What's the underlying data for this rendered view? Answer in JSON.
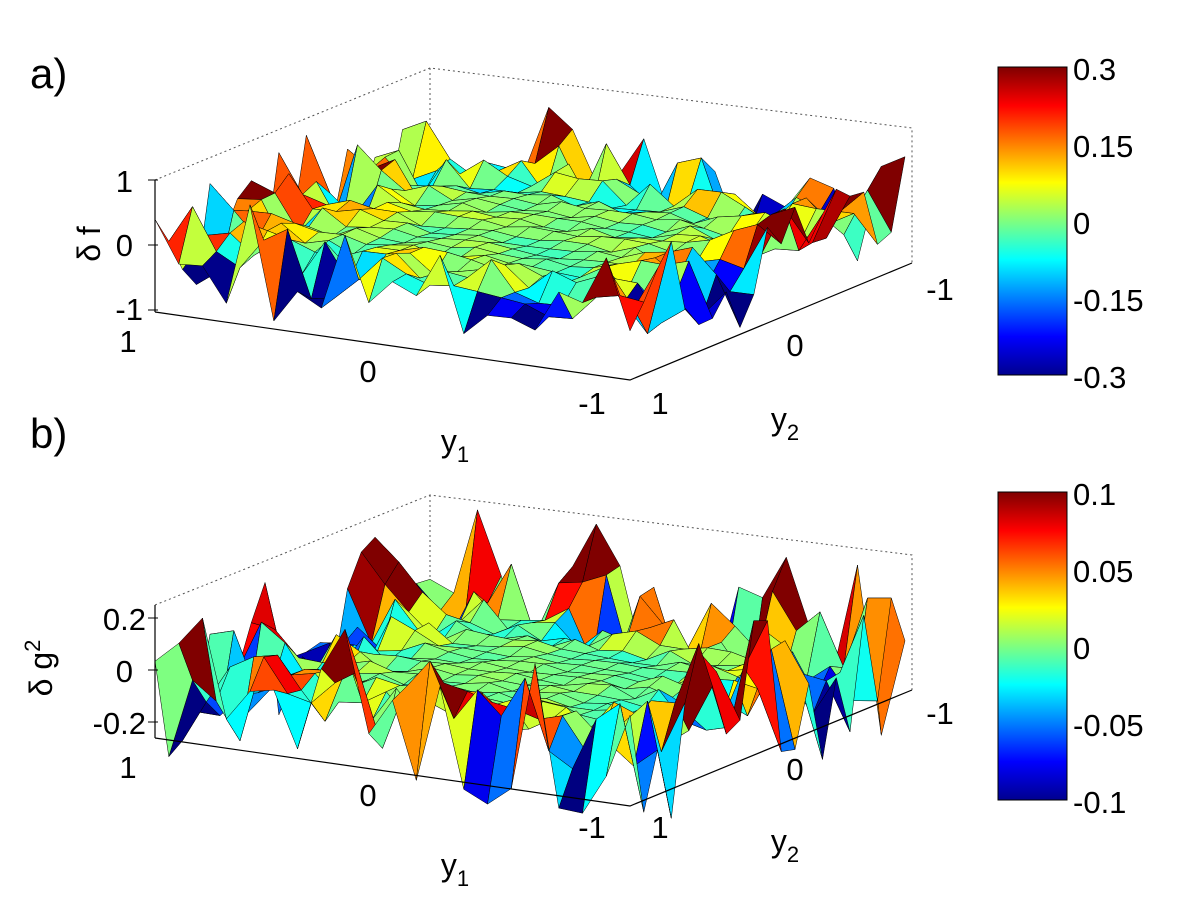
{
  "panels": [
    {
      "panel_label": "a)",
      "zlabel": "δ f",
      "colorbar": {
        "ticks": [
          "0.3",
          "0.15",
          "0",
          "-0.15",
          "-0.3"
        ],
        "cmin": -0.3,
        "cmax": 0.3
      }
    },
    {
      "panel_label": "b)",
      "zlabel": "δ g",
      "zlabel_sup": "2",
      "colorbar": {
        "ticks": [
          "0.1",
          "0.05",
          "0",
          "-0.05",
          "-0.1"
        ],
        "cmin": -0.1,
        "cmax": 0.1
      }
    }
  ],
  "axes": {
    "xlabel": "y",
    "xlabel_sub": "1",
    "ylabel": "y",
    "ylabel_sub": "2",
    "x_ticks": [
      "1",
      "0",
      "-1"
    ],
    "y_ticks": [
      "1",
      "0",
      "-1"
    ]
  },
  "chart_data": [
    {
      "type": "surface",
      "panel": "a)",
      "x": {
        "range": [
          -1,
          1
        ],
        "ticks": [
          1,
          0,
          -1
        ]
      },
      "y": {
        "range": [
          -1,
          1
        ],
        "ticks": [
          1,
          0,
          -1
        ]
      },
      "z": {
        "range": [
          -1,
          1
        ],
        "ticks": [
          -1,
          0,
          1
        ]
      },
      "colormap": "jet",
      "color_range": [
        -0.3,
        0.3
      ],
      "grid_size": 20,
      "description_of_values": "deviation is small near the centre and large with sharp spikes near the boundary of [-1,1]x[-1,1]",
      "center_amplitude": 0.05,
      "edge_amplitude": 0.9
    },
    {
      "type": "surface",
      "panel": "b)",
      "x": {
        "range": [
          -1,
          1
        ],
        "ticks": [
          1,
          0,
          -1
        ]
      },
      "y": {
        "range": [
          -1,
          1
        ],
        "ticks": [
          1,
          0,
          -1
        ]
      },
      "z": {
        "range": [
          -0.25,
          0.25
        ],
        "ticks": [
          -0.2,
          0,
          0.2
        ]
      },
      "colormap": "jet",
      "color_range": [
        -0.1,
        0.1
      ],
      "grid_size": 20,
      "description_of_values": "deviation is small near the centre and large with sharp spikes near the boundary of [-1,1]x[-1,1]",
      "center_amplitude": 0.01,
      "edge_amplitude": 0.35
    }
  ]
}
